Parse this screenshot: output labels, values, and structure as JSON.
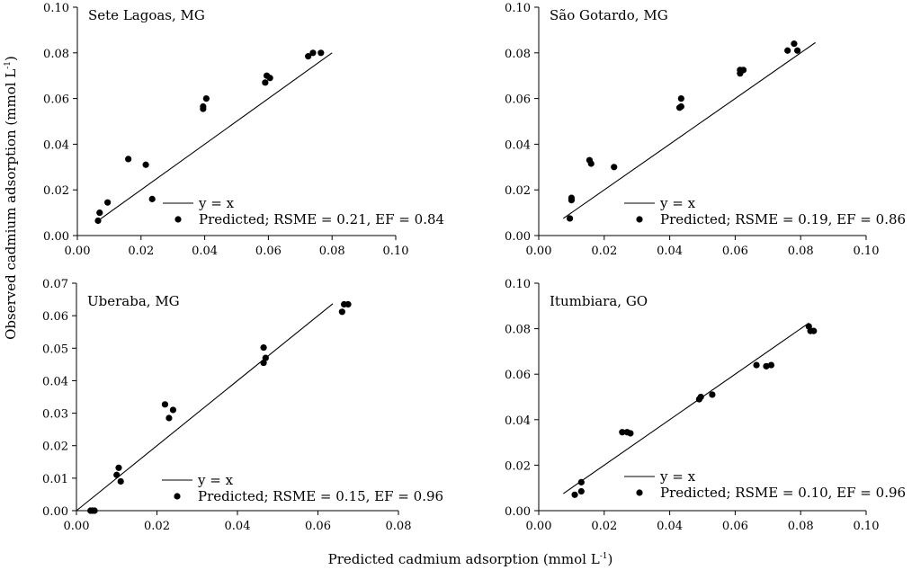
{
  "figure": {
    "ylabel": "Observed cadmium adsorption (mmol L",
    "xlabel": "Predicted cadmium adsorption (mmol L",
    "unit_sup": "-1",
    "unit_close": ")"
  },
  "chart_data": [
    {
      "type": "scatter",
      "title": "Sete Lagoas, MG",
      "xlim": [
        0,
        0.1
      ],
      "ylim": [
        0,
        0.1
      ],
      "xticks": [
        "0.00",
        "0.02",
        "0.04",
        "0.06",
        "0.08",
        "0.10"
      ],
      "yticks": [
        "0.00",
        "0.02",
        "0.04",
        "0.06",
        "0.08",
        "0.10"
      ],
      "line": {
        "label": "y = x",
        "x": [
          0.006,
          0.08
        ]
      },
      "series": [
        {
          "name": "Predicted; RSME = 0.21, EF = 0.84",
          "x": [
            0.0065,
            0.007,
            0.0095,
            0.016,
            0.0215,
            0.0235,
            0.0395,
            0.0395,
            0.0405,
            0.059,
            0.0595,
            0.0605,
            0.0725,
            0.074,
            0.0765
          ],
          "y": [
            0.0065,
            0.01,
            0.0145,
            0.0335,
            0.031,
            0.016,
            0.0555,
            0.0565,
            0.06,
            0.067,
            0.07,
            0.069,
            0.0785,
            0.08,
            0.08
          ]
        }
      ]
    },
    {
      "type": "scatter",
      "title": "São Gotardo, MG",
      "xlim": [
        0,
        0.1
      ],
      "ylim": [
        0,
        0.1
      ],
      "xticks": [
        "0.00",
        "0.02",
        "0.04",
        "0.06",
        "0.08",
        "0.10"
      ],
      "yticks": [
        "0.00",
        "0.02",
        "0.04",
        "0.06",
        "0.08",
        "0.10"
      ],
      "line": {
        "label": "y = x",
        "x": [
          0.0075,
          0.0845
        ]
      },
      "series": [
        {
          "name": "Predicted; RSME = 0.19, EF = 0.86",
          "x": [
            0.0095,
            0.01,
            0.01,
            0.0155,
            0.016,
            0.023,
            0.043,
            0.0435,
            0.0435,
            0.0615,
            0.0615,
            0.0625,
            0.076,
            0.078,
            0.079
          ],
          "y": [
            0.0075,
            0.0155,
            0.0165,
            0.033,
            0.0315,
            0.03,
            0.056,
            0.0565,
            0.06,
            0.071,
            0.0725,
            0.0725,
            0.081,
            0.084,
            0.081
          ]
        }
      ]
    },
    {
      "type": "scatter",
      "title": "Uberaba, MG",
      "xlim": [
        0,
        0.08
      ],
      "ylim": [
        0,
        0.07
      ],
      "xticks": [
        "0.00",
        "0.02",
        "0.04",
        "0.06",
        "0.08"
      ],
      "yticks": [
        "0.00",
        "0.01",
        "0.02",
        "0.03",
        "0.04",
        "0.05",
        "0.06",
        "0.07"
      ],
      "line": {
        "label": "y = x",
        "x": [
          0.0,
          0.0637
        ]
      },
      "series": [
        {
          "name": "Predicted; RSME = 0.15, EF = 0.96",
          "x": [
            0.0035,
            0.004,
            0.0045,
            0.01,
            0.0105,
            0.011,
            0.022,
            0.023,
            0.024,
            0.0465,
            0.0465,
            0.047,
            0.066,
            0.0665,
            0.0675
          ],
          "y": [
            0.0,
            0.0,
            0.0,
            0.011,
            0.0132,
            0.009,
            0.0327,
            0.0285,
            0.031,
            0.0502,
            0.0455,
            0.047,
            0.0612,
            0.0635,
            0.0635
          ]
        }
      ]
    },
    {
      "type": "scatter",
      "title": "Itumbiara, GO",
      "xlim": [
        0,
        0.1
      ],
      "ylim": [
        0,
        0.1
      ],
      "xticks": [
        "0.00",
        "0.02",
        "0.04",
        "0.06",
        "0.08",
        "0.10"
      ],
      "yticks": [
        "0.00",
        "0.02",
        "0.04",
        "0.06",
        "0.08",
        "0.10"
      ],
      "line": {
        "label": "y = x",
        "x": [
          0.0075,
          0.0825
        ]
      },
      "series": [
        {
          "name": "Predicted; RSME = 0.10, EF = 0.96",
          "x": [
            0.011,
            0.013,
            0.013,
            0.0255,
            0.027,
            0.028,
            0.049,
            0.0495,
            0.053,
            0.0665,
            0.0695,
            0.071,
            0.0825,
            0.083,
            0.084
          ],
          "y": [
            0.007,
            0.0085,
            0.0125,
            0.0345,
            0.0345,
            0.034,
            0.049,
            0.05,
            0.051,
            0.064,
            0.0635,
            0.064,
            0.081,
            0.079,
            0.079
          ]
        }
      ]
    }
  ]
}
